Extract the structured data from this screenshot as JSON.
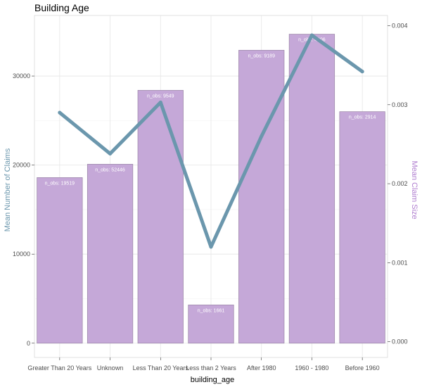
{
  "chart_data": {
    "type": "bar",
    "title": "Building Age",
    "xlabel": "building_age",
    "ylabel_left": "Mean Number of Claims",
    "ylabel_right": "Mean Claim Size",
    "categories": [
      "Greater Than 20 Years",
      "Unknown",
      "Less Than 20 Years",
      "Less than 2 Years",
      "After 1980",
      "1960 - 1980",
      "Before 1960"
    ],
    "bar_series": {
      "axis": "left",
      "values": [
        18600,
        20100,
        28400,
        4300,
        32900,
        34700,
        26000
      ],
      "labels": [
        "n_obs:  19519",
        "n_obs:  52446",
        "n_obs:  9549",
        "n_obs:  1661",
        "n_obs:  9189",
        "n_obs:  4906",
        "n_obs:  2914"
      ]
    },
    "line_series": {
      "axis": "right",
      "values": [
        0.0029,
        0.00238,
        0.00303,
        0.0012,
        0.0026,
        0.00388,
        0.00342
      ]
    },
    "ylim_left": [
      -1600,
      36800
    ],
    "ylim_right": [
      -0.0002,
      0.00413
    ],
    "yticks_left": [
      0,
      10000,
      20000,
      30000
    ],
    "yticks_right": [
      0.0,
      0.001,
      0.002,
      0.003,
      0.004
    ],
    "yticklabels_left": [
      "0",
      "10000",
      "20000",
      "30000"
    ],
    "yticklabels_right": [
      "0.000",
      "0.001",
      "0.002",
      "0.003",
      "0.004"
    ],
    "grid": true,
    "colors": {
      "bar": "#c5a8d8",
      "bar_outline": "#9a86a6",
      "line": "#6b97ad",
      "left_axis_title": "#6b97ad",
      "right_axis_title": "#b07fd0"
    }
  }
}
